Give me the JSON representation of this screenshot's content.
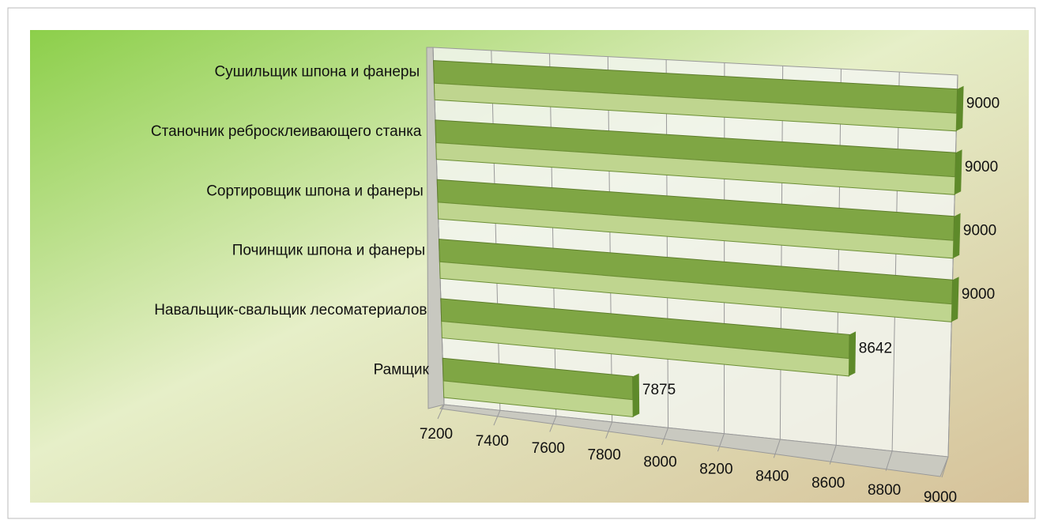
{
  "chart_data": {
    "type": "bar3d",
    "categories": [
      "Сушильщик шпона и фанеры",
      "Станочник ребросклеивающего станка",
      "Сортировщик шпона и фанеры",
      "Починщик шпона и фанеры",
      "Навальщик-свальщик лесоматериалов",
      "Рамщик"
    ],
    "values": [
      9000,
      9000,
      9000,
      9000,
      8642,
      7875
    ],
    "color": "#7fa644",
    "xlim": [
      7200,
      9000
    ],
    "xticks": [
      7200,
      7400,
      7600,
      7800,
      8000,
      8200,
      8400,
      8600,
      8800,
      9000
    ],
    "grid": true
  }
}
